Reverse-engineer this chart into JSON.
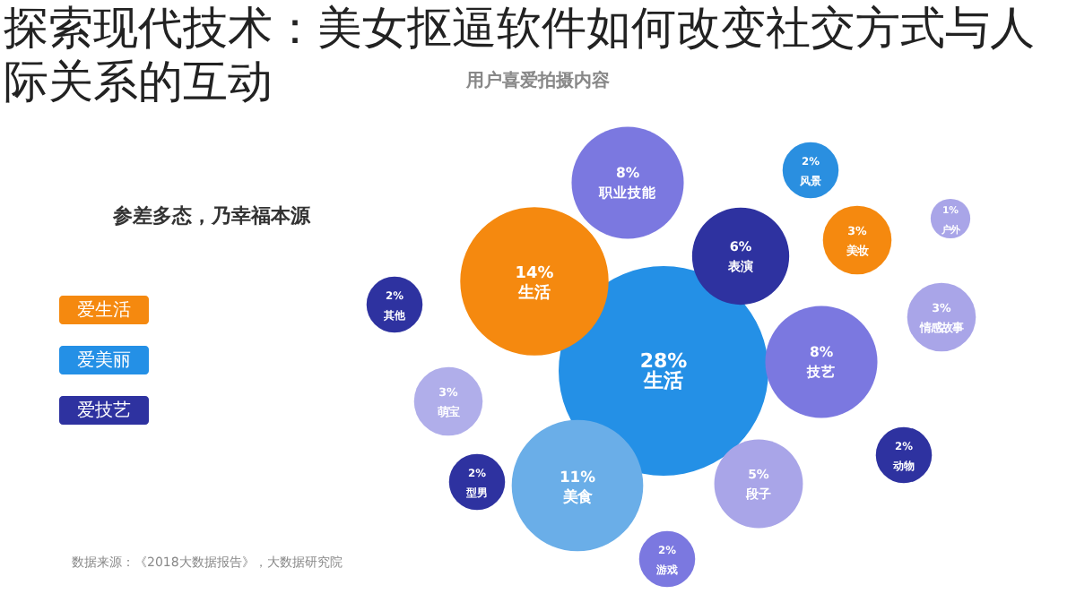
{
  "chart_data": {
    "type": "other",
    "title": "探索现代技术：美女抠逼软件如何改变社交方式与人际关系的互动",
    "subtitle": "用户喜爱拍摄内容",
    "annotations": [
      "参差多态，乃幸福本源",
      "数据来源：《2018大数据报告》，大数据研究院"
    ],
    "legend": "left",
    "categories": [
      "职业技能",
      "风景",
      "美妆",
      "户外",
      "表演",
      "生活",
      "其他",
      "情感故事",
      "技艺",
      "生活",
      "萌宝",
      "动物",
      "型男",
      "美食",
      "段子",
      "游戏"
    ],
    "series": [
      {
        "name": "爱生活",
        "color": "#f5890f",
        "values": [
          null,
          null,
          3,
          null,
          null,
          14,
          null,
          null,
          null,
          null,
          null,
          null,
          null,
          null,
          null,
          null
        ],
        "value_labels": [
          null,
          null,
          "3%",
          null,
          null,
          "14%",
          null,
          null,
          null,
          null,
          null,
          null,
          null,
          null,
          null,
          null
        ]
      },
      {
        "name": "爱美丽",
        "color": "#2490e6",
        "colors": [
          null,
          "#2a8fe0",
          null,
          null,
          null,
          null,
          null,
          null,
          null,
          "#2490e6",
          null,
          null,
          null,
          "#6aaee8",
          null,
          null
        ],
        "values": [
          null,
          2,
          null,
          null,
          null,
          null,
          null,
          null,
          null,
          28,
          null,
          null,
          null,
          11,
          null,
          null
        ],
        "value_labels": [
          null,
          "2%",
          null,
          null,
          null,
          null,
          null,
          null,
          null,
          "28%",
          null,
          null,
          null,
          "11%",
          null,
          null
        ]
      },
      {
        "name": "爱技艺",
        "color": "#2e32a0",
        "values": [
          null,
          null,
          null,
          null,
          6,
          null,
          2,
          null,
          null,
          null,
          null,
          2,
          2,
          null,
          null,
          null
        ],
        "value_labels": [
          null,
          null,
          null,
          null,
          "6%",
          null,
          "2%",
          null,
          null,
          null,
          null,
          "2%",
          "2%",
          null,
          null,
          null
        ]
      },
      {
        "colors": [
          "#7b78e0",
          null,
          null,
          "#a9a5e8",
          null,
          null,
          null,
          "#a9a5e8",
          "#7b78e0",
          null,
          "#b0aeea",
          null,
          null,
          null,
          "#a9a5e8",
          "#7b78e0"
        ],
        "values": [
          8,
          null,
          null,
          1,
          null,
          null,
          null,
          3,
          8,
          null,
          3,
          null,
          null,
          null,
          5,
          2
        ],
        "value_labels": [
          "8%",
          null,
          null,
          "1%",
          null,
          null,
          null,
          "3%",
          "8%",
          null,
          "3%",
          null,
          null,
          null,
          "5%",
          "2%"
        ]
      }
    ]
  }
}
